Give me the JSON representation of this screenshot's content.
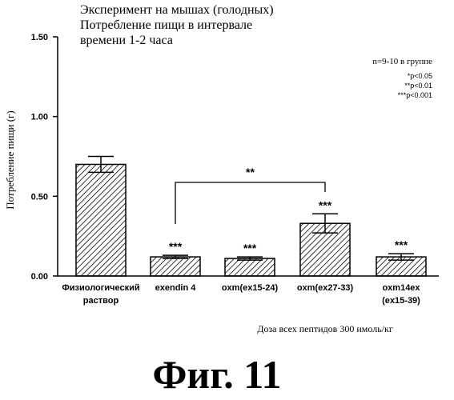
{
  "chart_data": {
    "type": "bar",
    "title_lines": [
      "Эксперимент на мышах (голодных)",
      "Потребление пищи в интервале",
      "времени 1-2 часа"
    ],
    "ylabel": "Потребление пищи (г)",
    "xlabel": "Доза всех пептидов 300 нмоль/кг",
    "ylim": [
      0,
      1.5
    ],
    "yticks": [
      {
        "value": 0,
        "label": "0.00"
      },
      {
        "value": 0.5,
        "label": "0.50"
      },
      {
        "value": 1.0,
        "label": "1.00"
      },
      {
        "value": 1.5,
        "label": "1.50"
      }
    ],
    "categories": [
      [
        "Физиологический",
        "раствор"
      ],
      [
        "exendin 4"
      ],
      [
        "oxm(ex15-24)"
      ],
      [
        "oxm(ex27-33)"
      ],
      [
        "oxm14ex",
        "(ex15-39)"
      ]
    ],
    "values": [
      0.7,
      0.12,
      0.11,
      0.33,
      0.12
    ],
    "errors": [
      0.05,
      0.01,
      0.01,
      0.06,
      0.02
    ],
    "significance": [
      "",
      "***",
      "***",
      "***",
      "***"
    ],
    "comparison": {
      "from": 1,
      "to": 3,
      "label": "**"
    },
    "legend_lines": [
      "n=9-10 в группе",
      "*p<0.05",
      "**p<0.01",
      "***p<0.001"
    ]
  },
  "figure_label": "Фиг.  11"
}
